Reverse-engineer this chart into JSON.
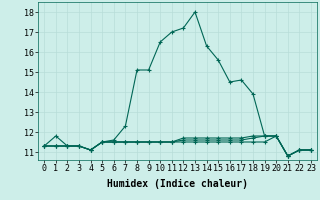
{
  "xlabel": "Humidex (Indice chaleur)",
  "background_color": "#cdeee9",
  "grid_color": "#b8ddd8",
  "line_color": "#006655",
  "xlim": [
    -0.5,
    23.5
  ],
  "ylim": [
    10.6,
    18.5
  ],
  "yticks": [
    11,
    12,
    13,
    14,
    15,
    16,
    17,
    18
  ],
  "xticks": [
    0,
    1,
    2,
    3,
    4,
    5,
    6,
    7,
    8,
    9,
    10,
    11,
    12,
    13,
    14,
    15,
    16,
    17,
    18,
    19,
    20,
    21,
    22,
    23
  ],
  "series": [
    [
      11.3,
      11.8,
      11.3,
      11.3,
      11.1,
      11.5,
      11.6,
      12.3,
      15.1,
      15.1,
      16.5,
      17.0,
      17.2,
      18.0,
      16.3,
      15.6,
      14.5,
      14.6,
      13.9,
      11.8,
      11.8,
      10.8,
      11.1,
      11.1
    ],
    [
      11.3,
      11.3,
      11.3,
      11.3,
      11.1,
      11.5,
      11.5,
      11.5,
      11.5,
      11.5,
      11.5,
      11.5,
      11.5,
      11.5,
      11.5,
      11.5,
      11.5,
      11.5,
      11.5,
      11.5,
      11.8,
      10.8,
      11.1,
      11.1
    ],
    [
      11.3,
      11.3,
      11.3,
      11.3,
      11.1,
      11.5,
      11.5,
      11.5,
      11.5,
      11.5,
      11.5,
      11.5,
      11.6,
      11.6,
      11.6,
      11.6,
      11.6,
      11.6,
      11.7,
      11.8,
      11.8,
      10.8,
      11.1,
      11.1
    ],
    [
      11.3,
      11.3,
      11.3,
      11.3,
      11.1,
      11.5,
      11.5,
      11.5,
      11.5,
      11.5,
      11.5,
      11.5,
      11.7,
      11.7,
      11.7,
      11.7,
      11.7,
      11.7,
      11.8,
      11.8,
      11.8,
      10.8,
      11.1,
      11.1
    ]
  ],
  "xlabel_fontsize": 7,
  "tick_fontsize": 6
}
